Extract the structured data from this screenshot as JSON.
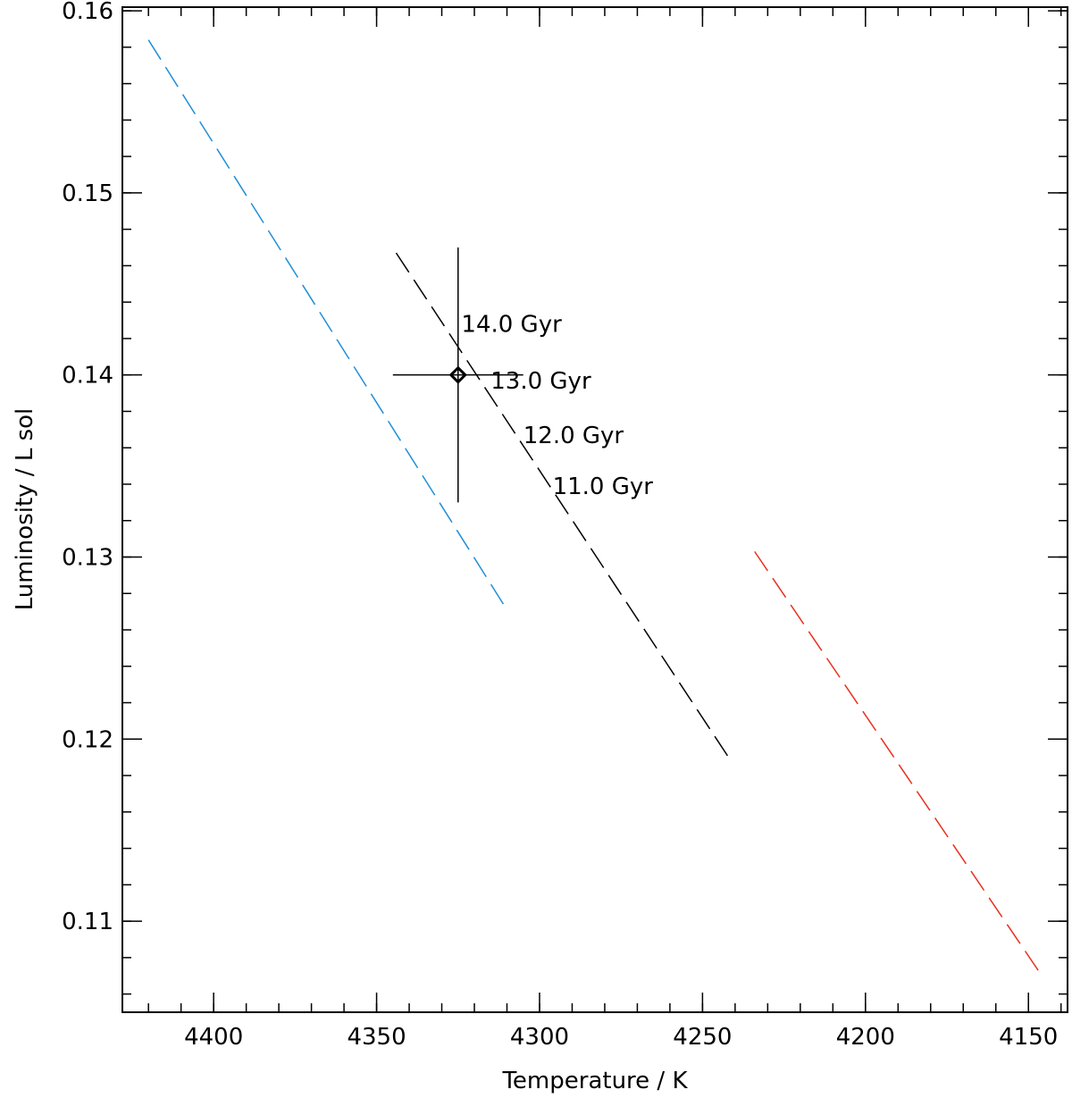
{
  "chart_data": {
    "type": "line",
    "title": "",
    "xlabel": "Temperature / K",
    "ylabel": "Luminosity / L sol",
    "xlim": [
      4428,
      4138
    ],
    "ylim": [
      0.105,
      0.1602
    ],
    "x_reversed": true,
    "grid": false,
    "x_major_ticks": [
      4400,
      4350,
      4300,
      4250,
      4200,
      4150
    ],
    "x_tick_labels": [
      "4400",
      "4350",
      "4300",
      "4250",
      "4200",
      "4150"
    ],
    "x_minor_step": 10,
    "y_major_ticks": [
      0.11,
      0.12,
      0.13,
      0.14,
      0.15,
      0.16
    ],
    "y_tick_labels": [
      "0.11",
      "0.12",
      "0.13",
      "0.14",
      "0.15",
      "0.16"
    ],
    "y_minor_step": 0.002,
    "series": [
      {
        "color": "#1f8fd6",
        "style": "dashed",
        "x": [
          4420,
          4310
        ],
        "y": [
          0.1584,
          0.1271
        ]
      },
      {
        "color": "#000000",
        "style": "dashed",
        "x": [
          4344,
          4242
        ],
        "y": [
          0.1467,
          0.119
        ]
      },
      {
        "color": "#e8301c",
        "style": "dashed",
        "x": [
          4234,
          4147
        ],
        "y": [
          0.1303,
          0.1073
        ]
      }
    ],
    "observation": {
      "x": 4325,
      "y": 0.14,
      "x_err": 20,
      "y_err": 0.007,
      "marker": "diamond",
      "color": "#000000"
    },
    "annotations": [
      {
        "text": "14.0 Gyr",
        "x": 4324,
        "y": 0.1428
      },
      {
        "text": "13.0 Gyr",
        "x": 4315,
        "y": 0.1397
      },
      {
        "text": "12.0 Gyr",
        "x": 4305,
        "y": 0.1367
      },
      {
        "text": "11.0 Gyr",
        "x": 4296,
        "y": 0.1339
      }
    ]
  }
}
